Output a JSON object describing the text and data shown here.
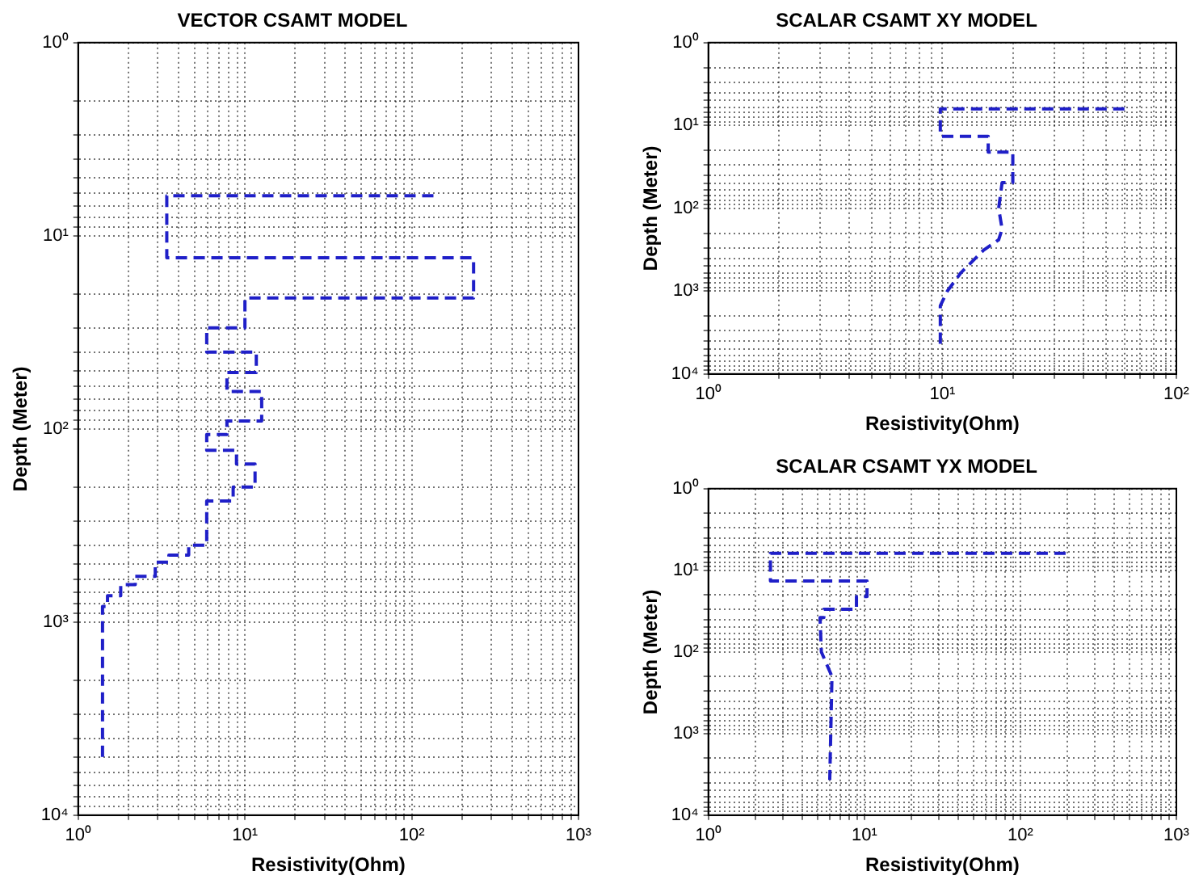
{
  "chart_data": [
    {
      "type": "line",
      "title": "VECTOR CSAMT MODEL",
      "xlabel": "Resistivity(Ohm)",
      "ylabel": "Depth (Meter)",
      "log": "xy",
      "grid": true,
      "legend": false,
      "line_style": "dashed",
      "xlim": [
        1,
        1000
      ],
      "ylim": [
        10000,
        1
      ],
      "xticks": [
        {
          "value": 1,
          "label": "10⁰"
        },
        {
          "value": 2,
          "label": null
        },
        {
          "value": 3,
          "label": null
        },
        {
          "value": 4,
          "label": null
        },
        {
          "value": 5,
          "label": null
        },
        {
          "value": 6,
          "label": null
        },
        {
          "value": 7,
          "label": null
        },
        {
          "value": 8,
          "label": null
        },
        {
          "value": 9,
          "label": null
        },
        {
          "value": 10,
          "label": "10¹"
        },
        {
          "value": 20,
          "label": null
        },
        {
          "value": 30,
          "label": null
        },
        {
          "value": 40,
          "label": null
        },
        {
          "value": 50,
          "label": null
        },
        {
          "value": 60,
          "label": null
        },
        {
          "value": 70,
          "label": null
        },
        {
          "value": 80,
          "label": null
        },
        {
          "value": 90,
          "label": null
        },
        {
          "value": 100,
          "label": "10²"
        },
        {
          "value": 200,
          "label": null
        },
        {
          "value": 300,
          "label": null
        },
        {
          "value": 400,
          "label": null
        },
        {
          "value": 500,
          "label": null
        },
        {
          "value": 600,
          "label": null
        },
        {
          "value": 700,
          "label": null
        },
        {
          "value": 800,
          "label": null
        },
        {
          "value": 900,
          "label": null
        },
        {
          "value": 1000,
          "label": "10³"
        }
      ],
      "yticks": [
        {
          "value": 1,
          "label": "10⁰"
        },
        {
          "value": 2,
          "label": null
        },
        {
          "value": 3,
          "label": null
        },
        {
          "value": 4,
          "label": null
        },
        {
          "value": 5,
          "label": null
        },
        {
          "value": 6,
          "label": null
        },
        {
          "value": 7,
          "label": null
        },
        {
          "value": 8,
          "label": null
        },
        {
          "value": 9,
          "label": null
        },
        {
          "value": 10,
          "label": "10¹"
        },
        {
          "value": 20,
          "label": null
        },
        {
          "value": 30,
          "label": null
        },
        {
          "value": 40,
          "label": null
        },
        {
          "value": 50,
          "label": null
        },
        {
          "value": 60,
          "label": null
        },
        {
          "value": 70,
          "label": null
        },
        {
          "value": 80,
          "label": null
        },
        {
          "value": 90,
          "label": null
        },
        {
          "value": 100,
          "label": "10²"
        },
        {
          "value": 200,
          "label": null
        },
        {
          "value": 300,
          "label": null
        },
        {
          "value": 400,
          "label": null
        },
        {
          "value": 500,
          "label": null
        },
        {
          "value": 600,
          "label": null
        },
        {
          "value": 700,
          "label": null
        },
        {
          "value": 800,
          "label": null
        },
        {
          "value": 900,
          "label": null
        },
        {
          "value": 1000,
          "label": "10³"
        },
        {
          "value": 2000,
          "label": null
        },
        {
          "value": 3000,
          "label": null
        },
        {
          "value": 4000,
          "label": null
        },
        {
          "value": 5000,
          "label": null
        },
        {
          "value": 6000,
          "label": null
        },
        {
          "value": 7000,
          "label": null
        },
        {
          "value": 8000,
          "label": null
        },
        {
          "value": 9000,
          "label": null
        },
        {
          "value": 10000,
          "label": "10⁴"
        }
      ],
      "series": [
        {
          "color": "#1f1fc8",
          "x": [
            135,
            3.4,
            3.4,
            235,
            235,
            10,
            10,
            5.9,
            5.9,
            11.7,
            11.7,
            7.8,
            7.8,
            12.6,
            12.6,
            7.8,
            7.8,
            5.9,
            5.9,
            8.9,
            8.9,
            11.5,
            11.5,
            8.5,
            8.5,
            5.9,
            5.9,
            4.6,
            4.6,
            3.5,
            3.5,
            2.9,
            2.9,
            2.2,
            2.2,
            1.8,
            1.8,
            1.5,
            1.5,
            1.4,
            1.4
          ],
          "values": [
            6.2,
            6.2,
            13,
            13,
            21,
            21,
            30,
            30,
            40,
            40,
            51,
            51,
            64,
            64,
            91,
            91,
            107,
            107,
            129,
            129,
            152,
            152,
            200,
            200,
            236,
            236,
            400,
            400,
            450,
            450,
            490,
            490,
            580,
            580,
            640,
            640,
            730,
            730,
            830,
            830,
            5000
          ]
        }
      ]
    },
    {
      "type": "line",
      "title": "SCALAR CSAMT XY MODEL",
      "xlabel": "Resistivity(Ohm)",
      "ylabel": "Depth (Meter)",
      "log": "xy",
      "grid": true,
      "legend": false,
      "line_style": "dashed",
      "xlim": [
        1,
        100
      ],
      "ylim": [
        10000,
        1
      ],
      "xticks": [
        {
          "value": 1,
          "label": "10⁰"
        },
        {
          "value": 2,
          "label": null
        },
        {
          "value": 3,
          "label": null
        },
        {
          "value": 4,
          "label": null
        },
        {
          "value": 5,
          "label": null
        },
        {
          "value": 6,
          "label": null
        },
        {
          "value": 7,
          "label": null
        },
        {
          "value": 8,
          "label": null
        },
        {
          "value": 9,
          "label": null
        },
        {
          "value": 10,
          "label": "10¹"
        },
        {
          "value": 20,
          "label": null
        },
        {
          "value": 30,
          "label": null
        },
        {
          "value": 40,
          "label": null
        },
        {
          "value": 50,
          "label": null
        },
        {
          "value": 60,
          "label": null
        },
        {
          "value": 70,
          "label": null
        },
        {
          "value": 80,
          "label": null
        },
        {
          "value": 90,
          "label": null
        },
        {
          "value": 100,
          "label": "10²"
        }
      ],
      "yticks": [
        {
          "value": 1,
          "label": "10⁰"
        },
        {
          "value": 2,
          "label": null
        },
        {
          "value": 3,
          "label": null
        },
        {
          "value": 4,
          "label": null
        },
        {
          "value": 5,
          "label": null
        },
        {
          "value": 6,
          "label": null
        },
        {
          "value": 7,
          "label": null
        },
        {
          "value": 8,
          "label": null
        },
        {
          "value": 9,
          "label": null
        },
        {
          "value": 10,
          "label": "10¹"
        },
        {
          "value": 20,
          "label": null
        },
        {
          "value": 30,
          "label": null
        },
        {
          "value": 40,
          "label": null
        },
        {
          "value": 50,
          "label": null
        },
        {
          "value": 60,
          "label": null
        },
        {
          "value": 70,
          "label": null
        },
        {
          "value": 80,
          "label": null
        },
        {
          "value": 90,
          "label": null
        },
        {
          "value": 100,
          "label": "10²"
        },
        {
          "value": 200,
          "label": null
        },
        {
          "value": 300,
          "label": null
        },
        {
          "value": 400,
          "label": null
        },
        {
          "value": 500,
          "label": null
        },
        {
          "value": 600,
          "label": null
        },
        {
          "value": 700,
          "label": null
        },
        {
          "value": 800,
          "label": null
        },
        {
          "value": 900,
          "label": null
        },
        {
          "value": 1000,
          "label": "10³"
        },
        {
          "value": 2000,
          "label": null
        },
        {
          "value": 3000,
          "label": null
        },
        {
          "value": 4000,
          "label": null
        },
        {
          "value": 5000,
          "label": null
        },
        {
          "value": 6000,
          "label": null
        },
        {
          "value": 7000,
          "label": null
        },
        {
          "value": 8000,
          "label": null
        },
        {
          "value": 9000,
          "label": null
        },
        {
          "value": 10000,
          "label": "10⁴"
        }
      ],
      "series": [
        {
          "color": "#1f1fc8",
          "x": [
            60,
            9.8,
            9.8,
            15.7,
            15.7,
            20,
            20,
            18,
            17.4,
            18,
            17.4,
            15,
            12,
            10.5,
            9.8,
            9.8
          ],
          "values": [
            6.3,
            6.3,
            13.5,
            13.5,
            21,
            21,
            49,
            49,
            100,
            178,
            240,
            320,
            600,
            1000,
            1500,
            4600
          ]
        }
      ]
    },
    {
      "type": "line",
      "title": "SCALAR CSAMT YX MODEL",
      "xlabel": "Resistivity(Ohm)",
      "ylabel": "Depth (Meter)",
      "log": "xy",
      "grid": true,
      "legend": false,
      "line_style": "dashed",
      "xlim": [
        1,
        1000
      ],
      "ylim": [
        10000,
        1
      ],
      "xticks": [
        {
          "value": 1,
          "label": "10⁰"
        },
        {
          "value": 2,
          "label": null
        },
        {
          "value": 3,
          "label": null
        },
        {
          "value": 4,
          "label": null
        },
        {
          "value": 5,
          "label": null
        },
        {
          "value": 6,
          "label": null
        },
        {
          "value": 7,
          "label": null
        },
        {
          "value": 8,
          "label": null
        },
        {
          "value": 9,
          "label": null
        },
        {
          "value": 10,
          "label": "10¹"
        },
        {
          "value": 20,
          "label": null
        },
        {
          "value": 30,
          "label": null
        },
        {
          "value": 40,
          "label": null
        },
        {
          "value": 50,
          "label": null
        },
        {
          "value": 60,
          "label": null
        },
        {
          "value": 70,
          "label": null
        },
        {
          "value": 80,
          "label": null
        },
        {
          "value": 90,
          "label": null
        },
        {
          "value": 100,
          "label": "10²"
        },
        {
          "value": 200,
          "label": null
        },
        {
          "value": 300,
          "label": null
        },
        {
          "value": 400,
          "label": null
        },
        {
          "value": 500,
          "label": null
        },
        {
          "value": 600,
          "label": null
        },
        {
          "value": 700,
          "label": null
        },
        {
          "value": 800,
          "label": null
        },
        {
          "value": 900,
          "label": null
        },
        {
          "value": 1000,
          "label": "10³"
        }
      ],
      "yticks": [
        {
          "value": 1,
          "label": "10⁰"
        },
        {
          "value": 2,
          "label": null
        },
        {
          "value": 3,
          "label": null
        },
        {
          "value": 4,
          "label": null
        },
        {
          "value": 5,
          "label": null
        },
        {
          "value": 6,
          "label": null
        },
        {
          "value": 7,
          "label": null
        },
        {
          "value": 8,
          "label": null
        },
        {
          "value": 9,
          "label": null
        },
        {
          "value": 10,
          "label": "10¹"
        },
        {
          "value": 20,
          "label": null
        },
        {
          "value": 30,
          "label": null
        },
        {
          "value": 40,
          "label": null
        },
        {
          "value": 50,
          "label": null
        },
        {
          "value": 60,
          "label": null
        },
        {
          "value": 70,
          "label": null
        },
        {
          "value": 80,
          "label": null
        },
        {
          "value": 90,
          "label": null
        },
        {
          "value": 100,
          "label": "10²"
        },
        {
          "value": 200,
          "label": null
        },
        {
          "value": 300,
          "label": null
        },
        {
          "value": 400,
          "label": null
        },
        {
          "value": 500,
          "label": null
        },
        {
          "value": 600,
          "label": null
        },
        {
          "value": 700,
          "label": null
        },
        {
          "value": 800,
          "label": null
        },
        {
          "value": 900,
          "label": null
        },
        {
          "value": 1000,
          "label": "10³"
        },
        {
          "value": 2000,
          "label": null
        },
        {
          "value": 3000,
          "label": null
        },
        {
          "value": 4000,
          "label": null
        },
        {
          "value": 5000,
          "label": null
        },
        {
          "value": 6000,
          "label": null
        },
        {
          "value": 7000,
          "label": null
        },
        {
          "value": 8000,
          "label": null
        },
        {
          "value": 9000,
          "label": null
        },
        {
          "value": 10000,
          "label": "10⁴"
        }
      ],
      "series": [
        {
          "color": "#1f1fc8",
          "x": [
            195,
            2.5,
            2.5,
            10.4,
            10.4,
            8.9,
            8.9,
            5.5,
            5.5,
            5.2,
            5.3,
            6.2,
            6.0
          ],
          "values": [
            6.2,
            6.2,
            13.5,
            13.5,
            21,
            21,
            30,
            30,
            38,
            38,
            100,
            200,
            3700
          ]
        }
      ]
    }
  ]
}
